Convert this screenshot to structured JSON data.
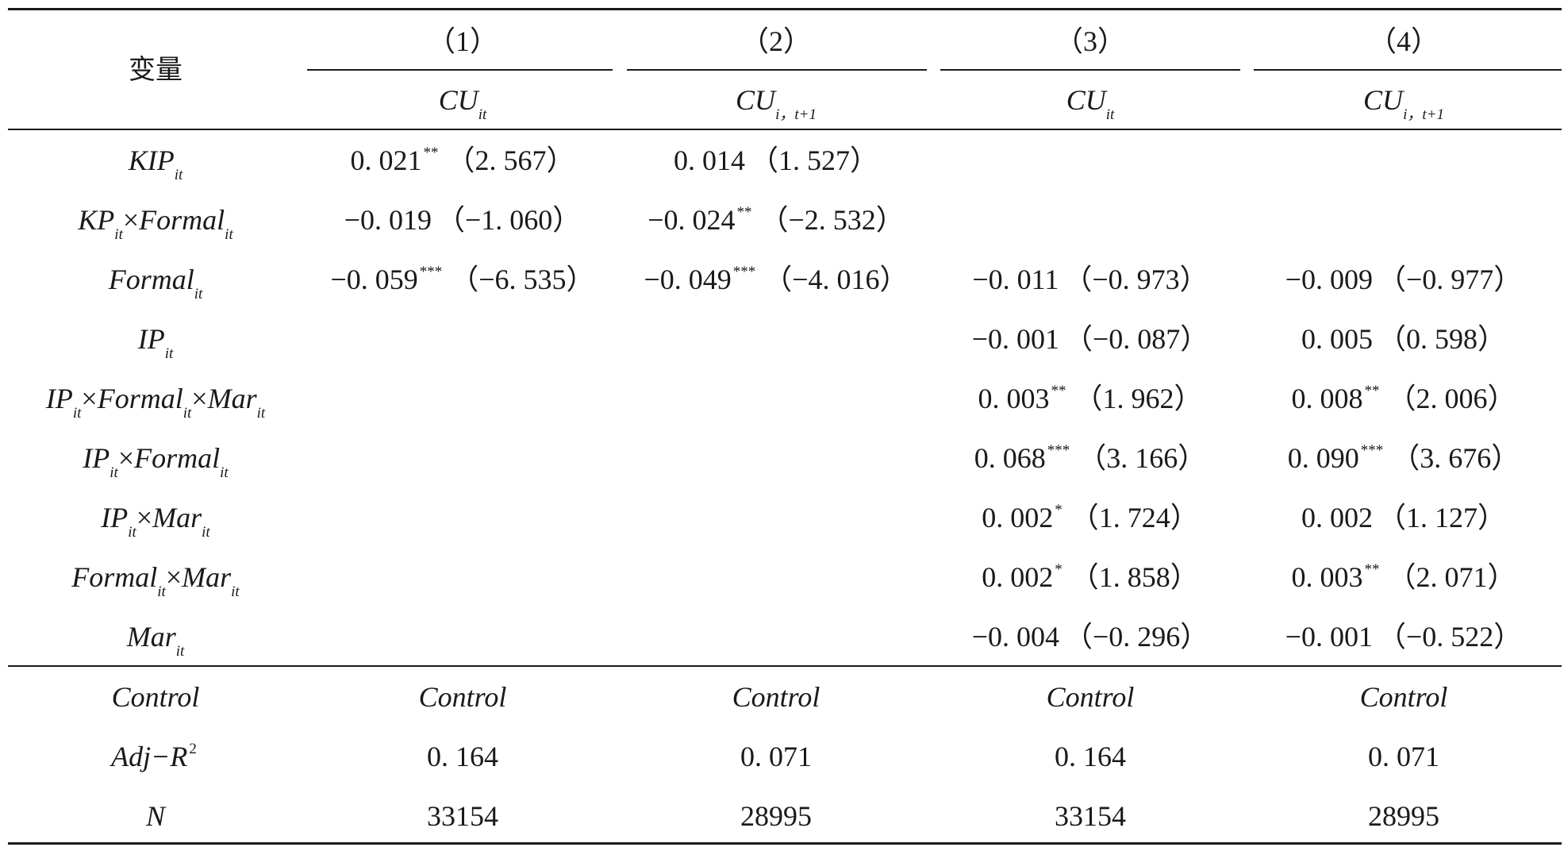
{
  "header": {
    "variable_label": "变量",
    "columns": [
      {
        "number": "（1）",
        "dv_main": "CU",
        "dv_sub": "it"
      },
      {
        "number": "（2）",
        "dv_main": "CU",
        "dv_sub": "i，t+1"
      },
      {
        "number": "（3）",
        "dv_main": "CU",
        "dv_sub": "it"
      },
      {
        "number": "（4）",
        "dv_main": "CU",
        "dv_sub": "i，t+1"
      }
    ]
  },
  "rows": [
    {
      "var": [
        {
          "m": "KIP",
          "s": "it"
        }
      ],
      "cells": [
        {
          "coef": "0. 021",
          "stars": "**",
          "t": "（2. 567）"
        },
        {
          "coef": "0. 014",
          "stars": "",
          "t": "（1. 527）"
        },
        null,
        null
      ]
    },
    {
      "var": [
        {
          "m": "KP",
          "s": "it"
        },
        {
          "m": "Formal",
          "s": "it"
        }
      ],
      "cells": [
        {
          "coef": "−0. 019",
          "stars": "",
          "t": "（−1. 060）"
        },
        {
          "coef": "−0. 024",
          "stars": "**",
          "t": "（−2. 532）"
        },
        null,
        null
      ]
    },
    {
      "var": [
        {
          "m": "Formal",
          "s": "it"
        }
      ],
      "cells": [
        {
          "coef": "−0. 059",
          "stars": "***",
          "t": "（−6. 535）"
        },
        {
          "coef": "−0. 049",
          "stars": "***",
          "t": "（−4. 016）"
        },
        {
          "coef": "−0. 011",
          "stars": "",
          "t": "（−0. 973）"
        },
        {
          "coef": "−0. 009",
          "stars": "",
          "t": "（−0. 977）"
        }
      ]
    },
    {
      "var": [
        {
          "m": "IP",
          "s": "it"
        }
      ],
      "cells": [
        null,
        null,
        {
          "coef": "−0. 001",
          "stars": "",
          "t": "（−0. 087）"
        },
        {
          "coef": "0. 005",
          "stars": "",
          "t": "（0. 598）"
        }
      ]
    },
    {
      "var": [
        {
          "m": "IP",
          "s": "it"
        },
        {
          "m": "Formal",
          "s": "it"
        },
        {
          "m": "Mar",
          "s": "it"
        }
      ],
      "cells": [
        null,
        null,
        {
          "coef": "0. 003",
          "stars": "**",
          "t": "（1. 962）"
        },
        {
          "coef": "0. 008",
          "stars": "**",
          "t": "（2. 006）"
        }
      ]
    },
    {
      "var": [
        {
          "m": "IP",
          "s": "it"
        },
        {
          "m": "Formal",
          "s": "it"
        }
      ],
      "cells": [
        null,
        null,
        {
          "coef": "0. 068",
          "stars": "***",
          "t": "（3. 166）"
        },
        {
          "coef": "0. 090",
          "stars": "***",
          "t": "（3. 676）"
        }
      ]
    },
    {
      "var": [
        {
          "m": "IP",
          "s": "it"
        },
        {
          "m": "Mar",
          "s": "it"
        }
      ],
      "cells": [
        null,
        null,
        {
          "coef": "0. 002",
          "stars": "*",
          "t": "（1. 724）"
        },
        {
          "coef": "0. 002",
          "stars": "",
          "t": "（1. 127）"
        }
      ]
    },
    {
      "var": [
        {
          "m": "Formal",
          "s": "it"
        },
        {
          "m": "Mar",
          "s": "it"
        }
      ],
      "cells": [
        null,
        null,
        {
          "coef": "0. 002",
          "stars": "*",
          "t": "（1. 858）"
        },
        {
          "coef": "0. 003",
          "stars": "**",
          "t": "（2. 071）"
        }
      ]
    },
    {
      "var": [
        {
          "m": "Mar",
          "s": "it"
        }
      ],
      "cells": [
        null,
        null,
        {
          "coef": "−0. 004",
          "stars": "",
          "t": "（−0. 296）"
        },
        {
          "coef": "−0. 001",
          "stars": "",
          "t": "（−0. 522）"
        }
      ]
    }
  ],
  "footer": [
    {
      "label": "Control",
      "label_sup": "",
      "italic": true,
      "values": [
        "Control",
        "Control",
        "Control",
        "Control"
      ]
    },
    {
      "label": "Adj−R",
      "label_sup": "2",
      "italic": true,
      "values": [
        "0. 164",
        "0. 071",
        "0. 164",
        "0. 071"
      ]
    },
    {
      "label": "N",
      "label_sup": "",
      "italic": true,
      "values": [
        "33154",
        "28995",
        "33154",
        "28995"
      ]
    }
  ],
  "times_symbol": "×"
}
